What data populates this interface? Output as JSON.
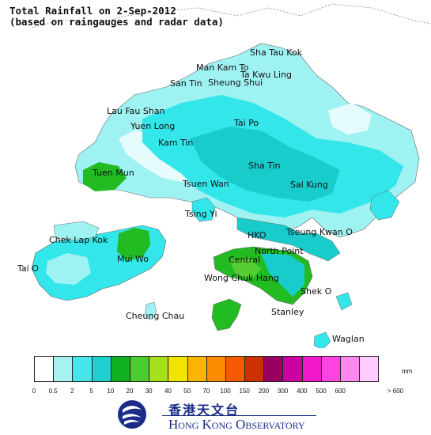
{
  "header": {
    "title_line1": "Total Rainfall on 2-Sep-2012",
    "title_line2": "(based on raingauges and radar data)"
  },
  "map": {
    "places": {
      "sha_tau_kok": "Sha Tau Kok",
      "man_kam_to": "Man Kam To",
      "ta_kwu_ling": "Ta Kwu Ling",
      "san_tin": "San Tin",
      "sheung_shui": "Sheung Shui",
      "lau_fau_shan": "Lau Fau Shan",
      "tai_po": "Tai Po",
      "yuen_long": "Yuen Long",
      "kam_tin": "Kam Tin",
      "tuen_mun": "Tuen Mun",
      "sha_tin": "Sha Tin",
      "tsuen_wan": "Tsuen Wan",
      "sai_kung": "Sai Kung",
      "tsing_yi": "Tsing Yi",
      "chek_lap_kok": "Chek Lap Kok",
      "hko": "HKO",
      "tseung_kwan_o": "Tseung Kwan O",
      "mui_wo": "Mui Wo",
      "north_point": "North Point",
      "central": "Central",
      "tai_o": "Tai O",
      "wong_chuk_hang": "Wong Chuk Hang",
      "shek_o": "Shek O",
      "cheung_chau": "Cheung Chau",
      "stanley": "Stanley",
      "waglan": "Waglan"
    },
    "colors": {
      "land_light": "#e6fbfb",
      "band_0_5_2": "#9ff2f2",
      "band_2_5": "#33e6ea",
      "band_5_10": "#19cccc",
      "band_10_20": "#22bb22",
      "band_20_30": "#55cc33"
    }
  },
  "legend": {
    "unit": "mm",
    "colors": [
      "#ffffff",
      "#a6f2f0",
      "#48e6ea",
      "#1fd0cf",
      "#10b020",
      "#4ccc30",
      "#a4e01c",
      "#f0e400",
      "#fbb400",
      "#fb8c00",
      "#f45a00",
      "#cc3000",
      "#990060",
      "#cc00a0",
      "#f018c8",
      "#ff44e0",
      "#ff88ee",
      "#ffccff"
    ],
    "ticks": [
      "0",
      "0.5",
      "2",
      "5",
      "10",
      "20",
      "30",
      "40",
      "50",
      "70",
      "100",
      "150",
      "200",
      "300",
      "400",
      "500",
      "600",
      "> 600"
    ]
  },
  "logo": {
    "chinese": "香港天文台",
    "english": "Hong Kong Observatory"
  }
}
